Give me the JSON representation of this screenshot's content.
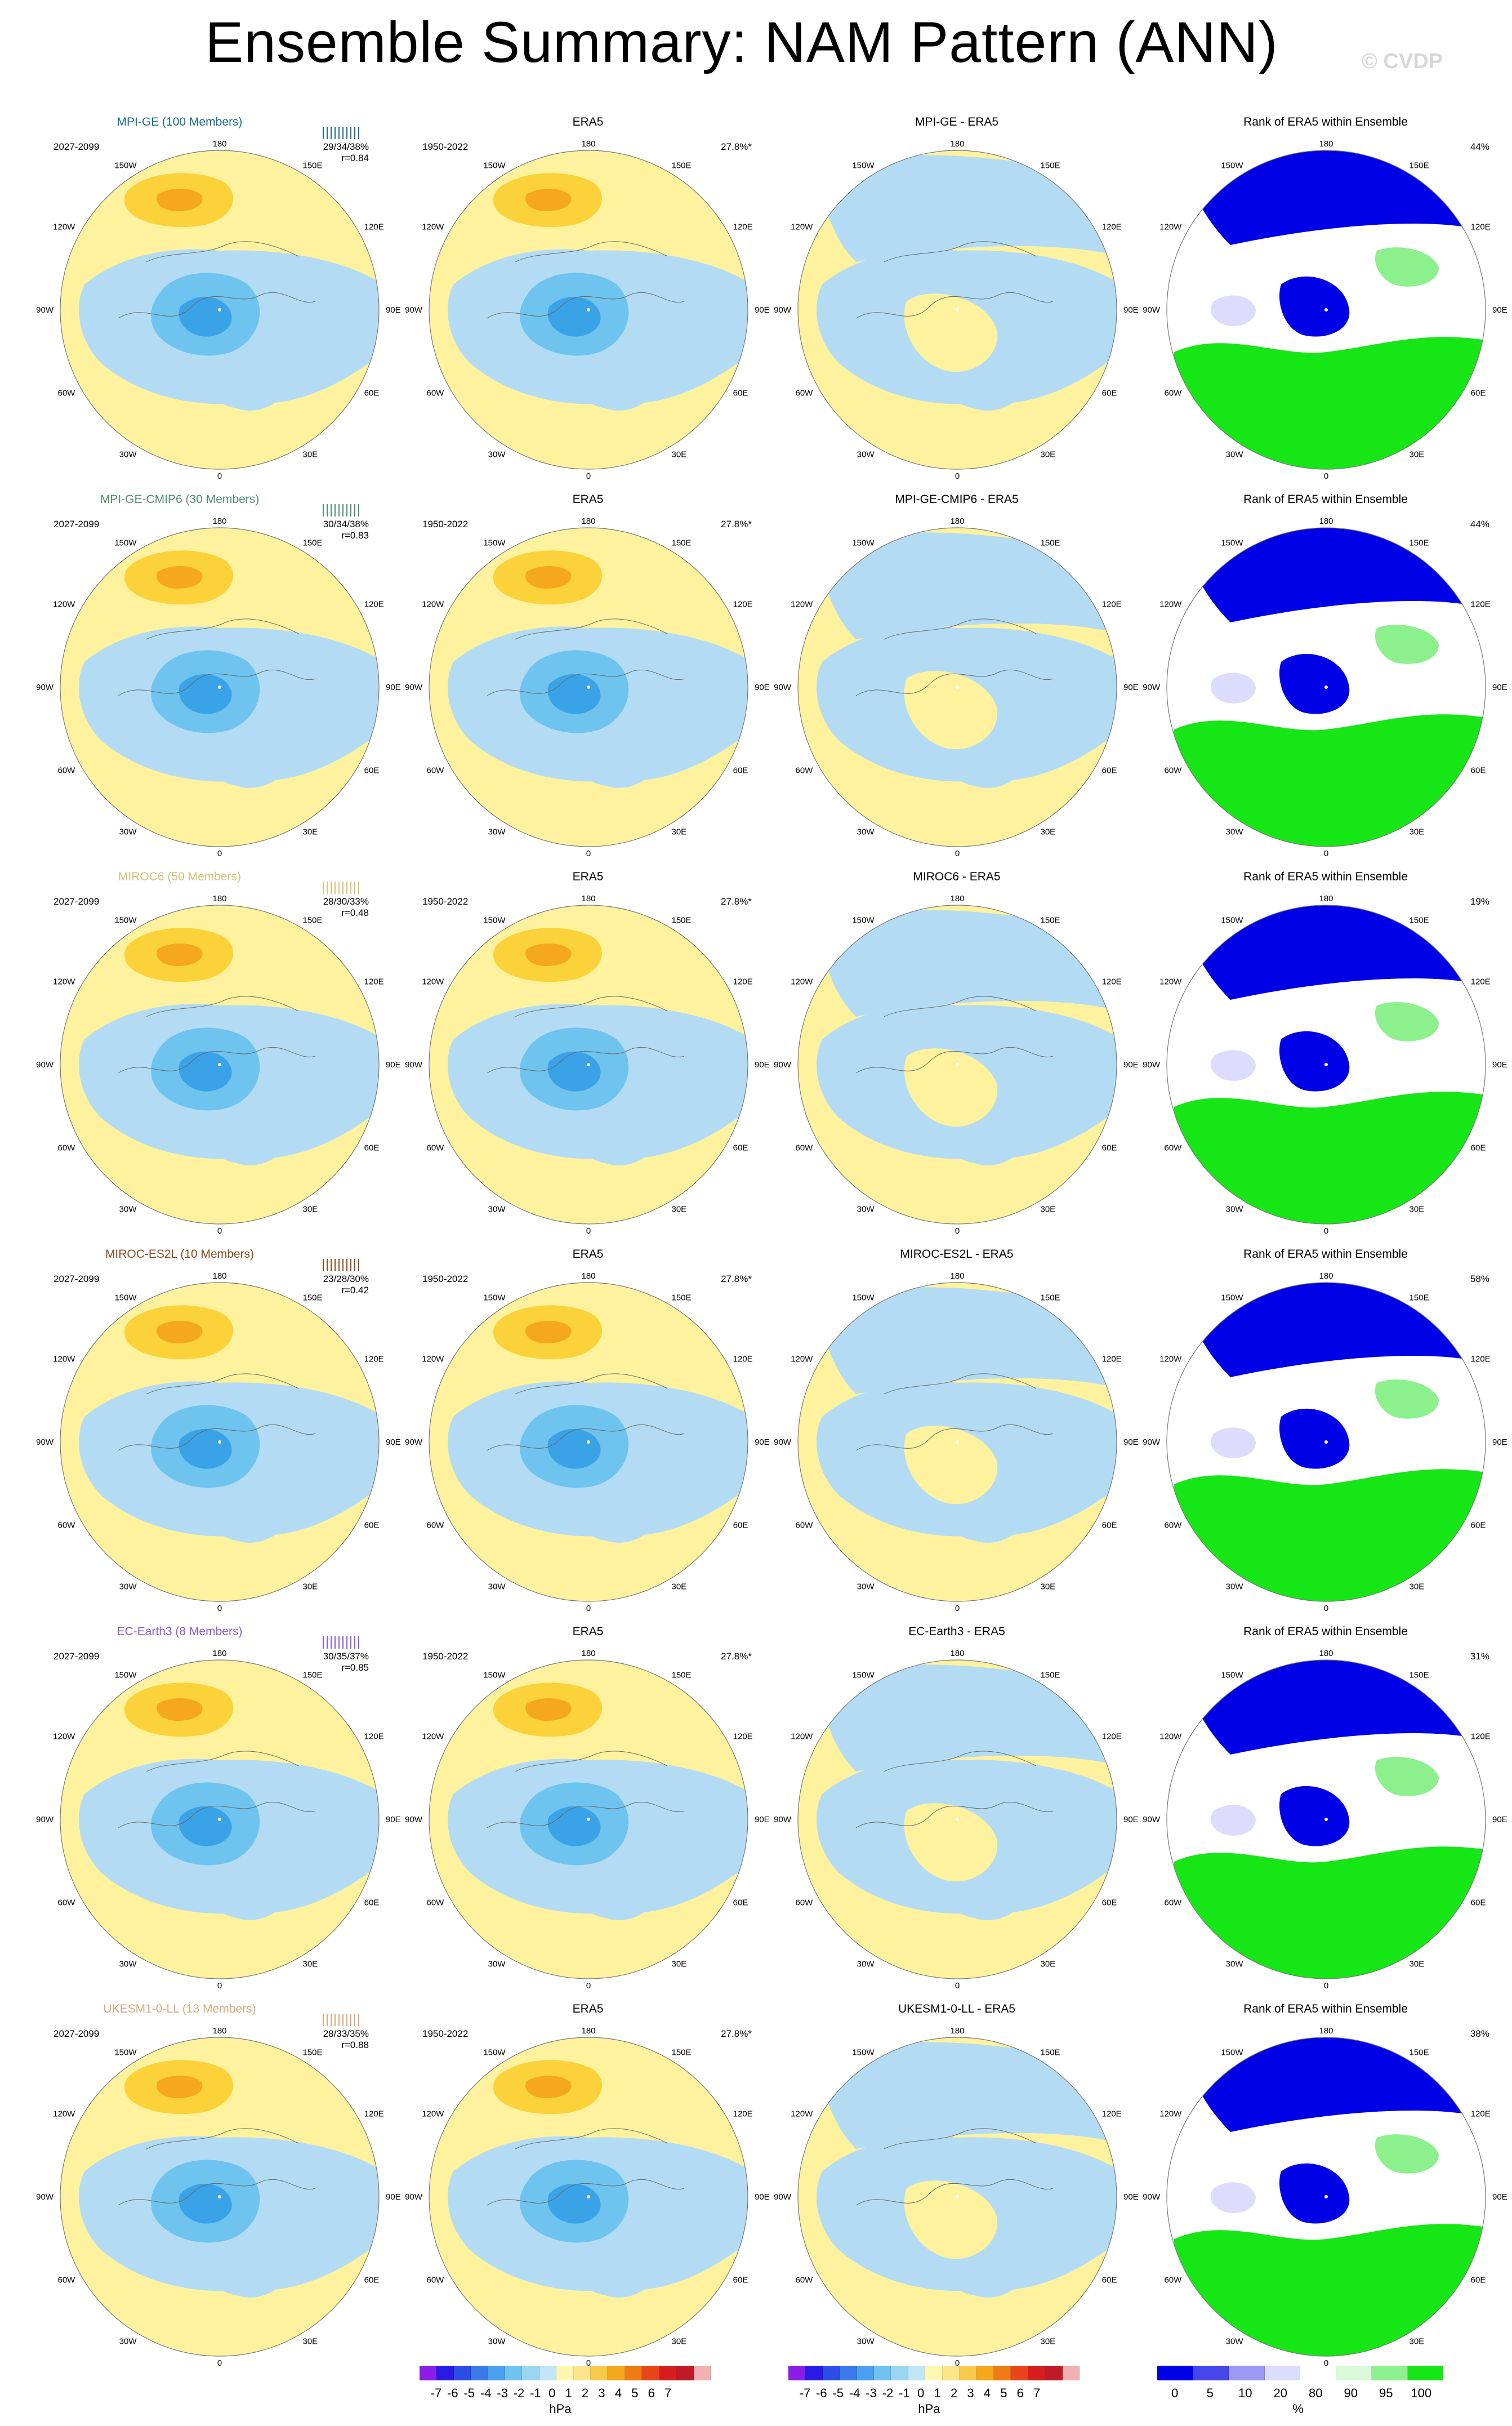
{
  "title": "Ensemble Summary: NAM Pattern (ANN)",
  "credit": "© CVDP",
  "colors": {
    "pos_weak": "#fff29e",
    "pos_mid": "#fcd23a",
    "pos_strong": "#f5a81c",
    "neg_weak": "#b3dcf4",
    "neg_mid": "#6ec4ee",
    "neg_strong": "#3aa2e6",
    "rank_low": "#0000e6",
    "rank_lowmid": "#7a7af0",
    "rank_pale": "#dcdcfc",
    "rank_white": "#ffffff",
    "rank_palegreen": "#d8fad8",
    "rank_midgreen": "#8cf08c",
    "rank_high": "#16e616"
  },
  "longitude_labels": {
    "top": "180",
    "bottom": "0",
    "upper_left": "150W",
    "upper_right": "150E",
    "mid_upper_left": "120W",
    "mid_upper_right": "120E",
    "left": "90W",
    "right": "90E",
    "mid_lower_left": "60W",
    "mid_lower_right": "60E",
    "lower_left": "30W",
    "lower_right": "30E"
  },
  "rows": [
    {
      "model": "MPI-GE (100 Members)",
      "model_color": "#1a6d8c",
      "model_period": "2027-2099",
      "stats": [
        "29/34/38%",
        "r=0.84"
      ],
      "era5_title": "ERA5",
      "era5_period": "1950-2022",
      "era5_pct": "27.8%*",
      "diff_title": "MPI-GE - ERA5",
      "rank_title": "Rank of ERA5 within Ensemble",
      "rank_pct": "44%"
    },
    {
      "model": "MPI-GE-CMIP6 (30 Members)",
      "model_color": "#4f8f6a",
      "model_period": "2027-2099",
      "stats": [
        "30/34/38%",
        "r=0.83"
      ],
      "era5_title": "ERA5",
      "era5_period": "1950-2022",
      "era5_pct": "27.8%*",
      "diff_title": "MPI-GE-CMIP6 - ERA5",
      "rank_title": "Rank of ERA5 within Ensemble",
      "rank_pct": "44%"
    },
    {
      "model": "MIROC6 (50 Members)",
      "model_color": "#d6c27a",
      "model_period": "2027-2099",
      "stats": [
        "28/30/33%",
        "r=0.48"
      ],
      "era5_title": "ERA5",
      "era5_period": "1950-2022",
      "era5_pct": "27.8%*",
      "diff_title": "MIROC6 - ERA5",
      "rank_title": "Rank of ERA5 within Ensemble",
      "rank_pct": "19%"
    },
    {
      "model": "MIROC-ES2L (10 Members)",
      "model_color": "#8a4b1e",
      "model_period": "2027-2099",
      "stats": [
        "23/28/30%",
        "r=0.42"
      ],
      "era5_title": "ERA5",
      "era5_period": "1950-2022",
      "era5_pct": "27.8%*",
      "diff_title": "MIROC-ES2L - ERA5",
      "rank_title": "Rank of ERA5 within Ensemble",
      "rank_pct": "58%"
    },
    {
      "model": "EC-Earth3 (8 Members)",
      "model_color": "#8a5bd6",
      "model_period": "2027-2099",
      "stats": [
        "30/35/37%",
        "r=0.85"
      ],
      "era5_title": "ERA5",
      "era5_period": "1950-2022",
      "era5_pct": "27.8%*",
      "diff_title": "EC-Earth3 - ERA5",
      "rank_title": "Rank of ERA5 within Ensemble",
      "rank_pct": "31%"
    },
    {
      "model": "UKESM1-0-LL (13 Members)",
      "model_color": "#d9a77a",
      "model_period": "2027-2099",
      "stats": [
        "28/33/35%",
        "r=0.88"
      ],
      "era5_title": "ERA5",
      "era5_period": "1950-2022",
      "era5_pct": "27.8%*",
      "diff_title": "UKESM1-0-LL - ERA5",
      "rank_title": "Rank of ERA5 within Ensemble",
      "rank_pct": "38%"
    }
  ],
  "colorbar_hpa": {
    "labels": [
      "-7",
      "-6",
      "-5",
      "-4",
      "-3",
      "-2",
      "-1",
      "0",
      "1",
      "2",
      "3",
      "4",
      "5",
      "6",
      "7"
    ],
    "unit": "hPa",
    "colors": [
      "#8a1ee6",
      "#2a1ae6",
      "#2a4ee6",
      "#3a7ae8",
      "#4aa0ee",
      "#6ec4ee",
      "#9ad6f2",
      "#c0e6f6",
      "#fff6b0",
      "#fde68a",
      "#fbc84a",
      "#f5a81c",
      "#f07b14",
      "#e8451a",
      "#d61e1e",
      "#c01a28",
      "#f2b0b0"
    ]
  },
  "colorbar_rank": {
    "labels": [
      "0",
      "5",
      "10",
      "20",
      "80",
      "90",
      "95",
      "100"
    ],
    "unit": "%",
    "colors": [
      "#0000e6",
      "#4646ea",
      "#9a9af4",
      "#dcdcfc",
      "#ffffff",
      "#d8fad8",
      "#8cf08c",
      "#16e616"
    ]
  }
}
